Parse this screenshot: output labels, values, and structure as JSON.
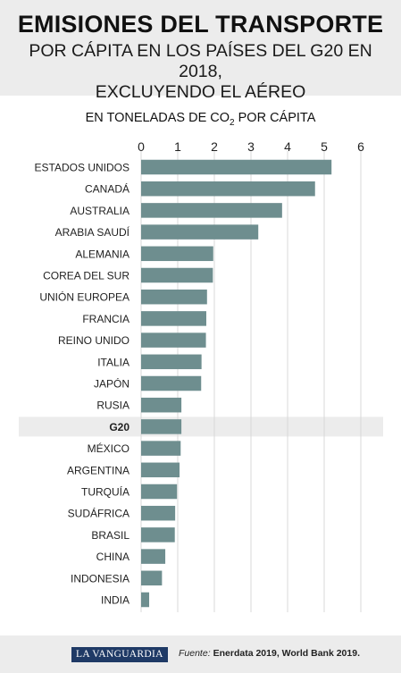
{
  "header": {
    "title": "EMISIONES DEL TRANSPORTE",
    "subtitle_line1": "POR CÁPITA EN LOS PAÍSES DEL G20 EN 2018,",
    "subtitle_line2": "EXCLUYENDO EL AÉREO"
  },
  "unit_label": {
    "prefix": "EN TONELADAS DE CO",
    "subscript": "2",
    "suffix": " POR CÁPITA"
  },
  "colors": {
    "bar": "#6e8e8f",
    "highlight_band": "#ececec",
    "grid": "#d9d9d9",
    "header_bg": "#ececec",
    "logo_bg": "#1f3a66"
  },
  "chart_data": {
    "type": "bar",
    "orientation": "horizontal",
    "categories": [
      "ESTADOS UNIDOS",
      "CANADÁ",
      "AUSTRALIA",
      "ARABIA SAUDÍ",
      "ALEMANIA",
      "COREA DEL SUR",
      "UNIÓN EUROPEA",
      "FRANCIA",
      "REINO UNIDO",
      "ITALIA",
      "JAPÓN",
      "RUSIA",
      "G20",
      "MÉXICO",
      "ARGENTINA",
      "TURQUÍA",
      "SUDÁFRICA",
      "BRASIL",
      "CHINA",
      "INDONESIA",
      "INDIA"
    ],
    "values": [
      5.2,
      4.75,
      3.85,
      3.2,
      1.97,
      1.96,
      1.8,
      1.78,
      1.77,
      1.65,
      1.64,
      1.1,
      1.1,
      1.08,
      1.05,
      0.98,
      0.93,
      0.92,
      0.66,
      0.57,
      0.22
    ],
    "highlight": "G20",
    "xlim": [
      0,
      6
    ],
    "ticks": [
      0,
      1,
      2,
      3,
      4,
      5,
      6
    ],
    "axis_position": "top",
    "grid": true
  },
  "footer": {
    "logo": "LA VANGUARDIA",
    "source_label": "Fuente:",
    "source_text": "Enerdata 2019, World Bank 2019."
  }
}
